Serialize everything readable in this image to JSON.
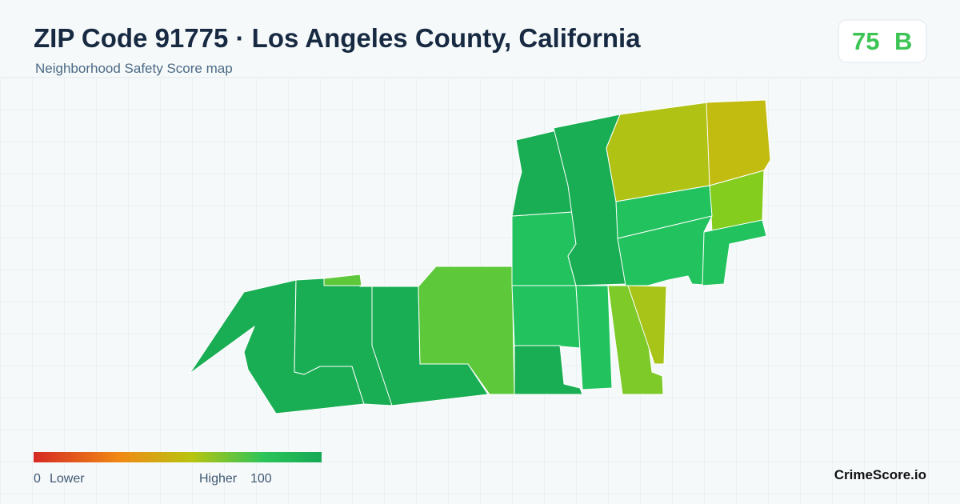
{
  "header": {
    "title": "ZIP Code 91775 · Los Angeles County, California",
    "subtitle": "Neighborhood Safety Score map"
  },
  "score": {
    "value": 75,
    "grade": "B"
  },
  "legend": {
    "min": 0,
    "min_label": "Lower",
    "max_label": "Higher",
    "max": 100
  },
  "brand": "CrimeScore.io"
}
